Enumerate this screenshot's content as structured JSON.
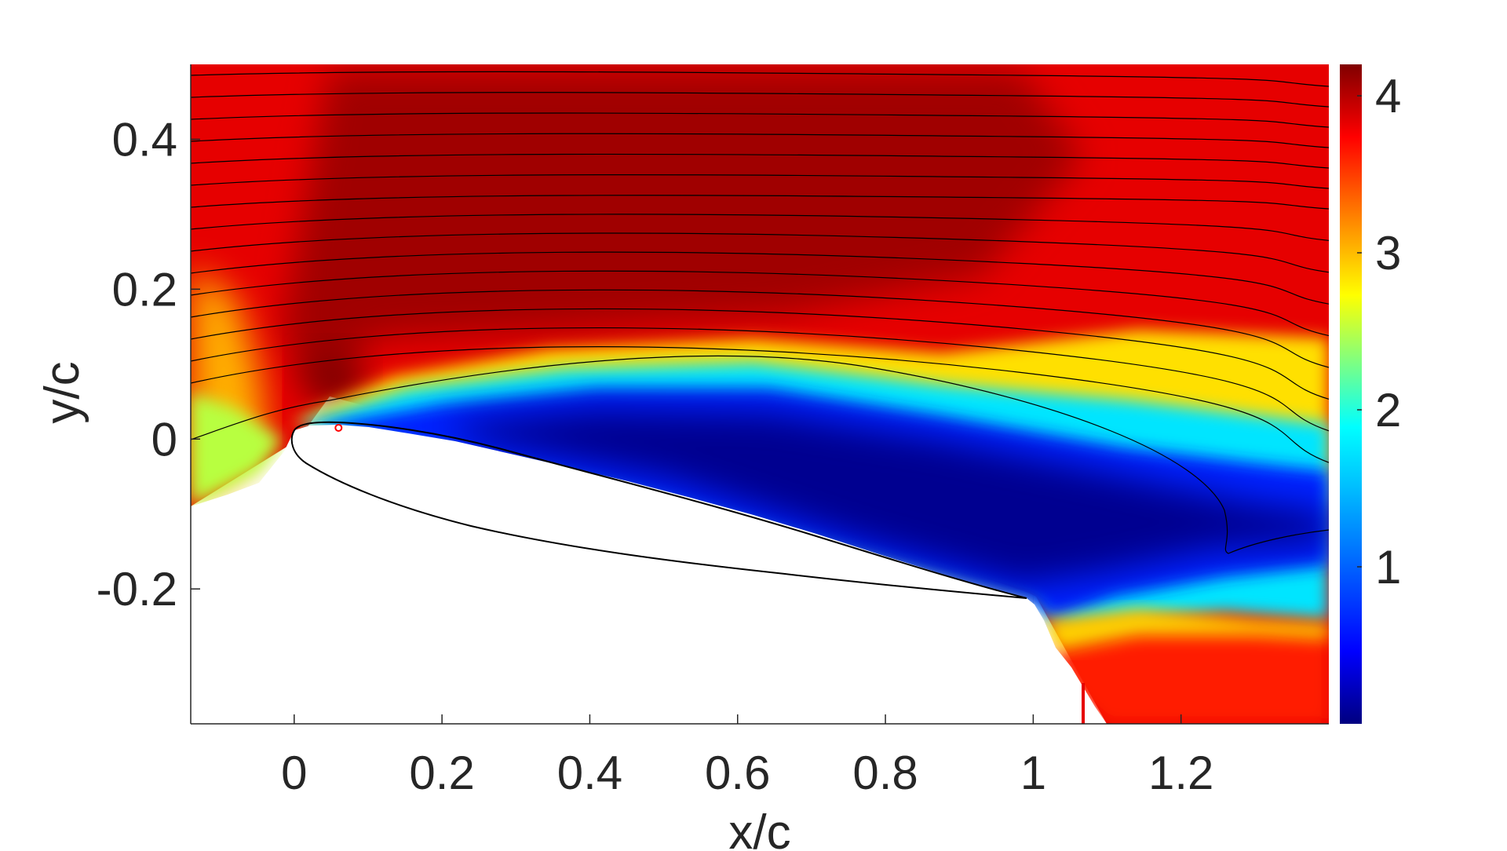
{
  "chart_data": {
    "type": "heatmap",
    "title": "",
    "xlabel": "x/c",
    "ylabel": "y/c",
    "xlim": [
      -0.14,
      1.4
    ],
    "ylim": [
      -0.38,
      0.5
    ],
    "x_ticks": [
      0,
      0.2,
      0.4,
      0.6,
      0.8,
      1,
      1.2
    ],
    "x_tick_labels": [
      "0",
      "0.2",
      "0.4",
      "0.6",
      "0.8",
      "1",
      "1.2"
    ],
    "y_ticks": [
      -0.2,
      0,
      0.2,
      0.4
    ],
    "y_tick_labels": [
      "-0.2",
      "0",
      "0.2",
      "0.4"
    ],
    "grid": true,
    "colormap": "jet",
    "colorbar": {
      "range": [
        0,
        4.2
      ],
      "ticks": [
        1,
        2,
        3,
        4
      ],
      "tick_labels": [
        "1",
        "2",
        "3",
        "4"
      ],
      "placement": "right"
    },
    "colormap_stops": [
      "#000080",
      "#0000ff",
      "#00bfff",
      "#00ffff",
      "#80ff80",
      "#ffff00",
      "#ff8000",
      "#ff0000",
      "#800000"
    ],
    "airfoil_chord": [
      0,
      0.98
    ],
    "leading_edge_marker": [
      0.06,
      0.015
    ],
    "marker_color": "#ff0000",
    "streamline_color": "#000000",
    "grid_color": "#d9d9d9"
  }
}
